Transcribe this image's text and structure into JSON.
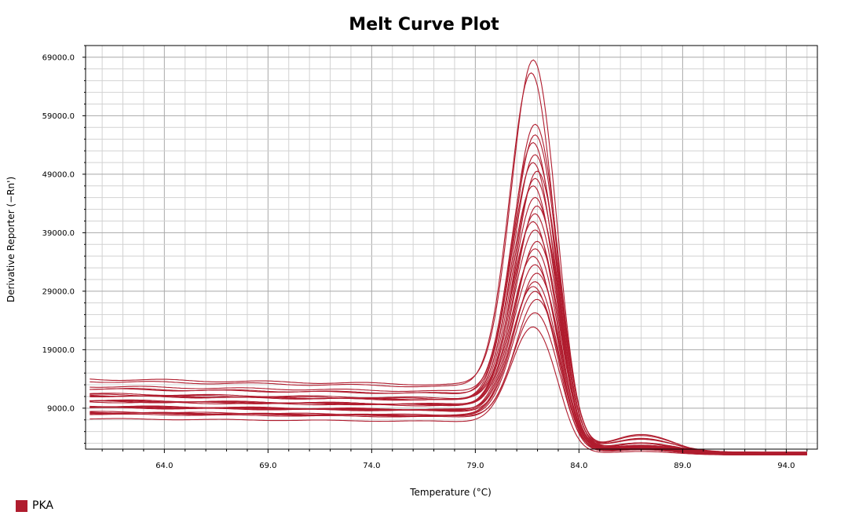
{
  "chart_data": {
    "type": "line",
    "title": "Melt Curve Plot",
    "xlabel": "Temperature (°C)",
    "ylabel": "Derivative Reporter (−Rn')",
    "xlim": [
      60.2,
      95.5
    ],
    "ylim": [
      2000,
      71000
    ],
    "x_ticks": [
      64.0,
      69.0,
      74.0,
      79.0,
      84.0,
      89.0,
      94.0
    ],
    "x_tick_labels": [
      "64.0",
      "69.0",
      "74.0",
      "79.0",
      "84.0",
      "89.0",
      "94.0"
    ],
    "y_ticks": [
      9000,
      19000,
      29000,
      39000,
      49000,
      59000,
      69000
    ],
    "y_tick_labels": [
      "9000.0",
      "19000.0",
      "29000.0",
      "39000.0",
      "49000.0",
      "59000.0",
      "69000.0"
    ],
    "grid": true,
    "legend_position": "bottom-left",
    "series_color": "#b01c2e",
    "series": [
      {
        "name": "PKA",
        "baseline": 13000,
        "peak_x": 81.8,
        "peak": 69000,
        "shoulder": 3500
      },
      {
        "name": "PKA",
        "baseline": 12500,
        "peak_x": 81.7,
        "peak": 66500,
        "shoulder": 3200
      },
      {
        "name": "PKA",
        "baseline": 11500,
        "peak_x": 81.9,
        "peak": 57500,
        "shoulder": 2600
      },
      {
        "name": "PKA",
        "baseline": 11000,
        "peak_x": 81.9,
        "peak": 55500,
        "shoulder": 2400
      },
      {
        "name": "PKA",
        "baseline": 10800,
        "peak_x": 81.8,
        "peak": 54000,
        "shoulder": 2200
      },
      {
        "name": "PKA",
        "baseline": 10500,
        "peak_x": 81.9,
        "peak": 52500,
        "shoulder": 2000
      },
      {
        "name": "PKA",
        "baseline": 10200,
        "peak_x": 81.8,
        "peak": 51000,
        "shoulder": 1900
      },
      {
        "name": "PKA",
        "baseline": 10000,
        "peak_x": 82.0,
        "peak": 49500,
        "shoulder": 1800
      },
      {
        "name": "PKA",
        "baseline": 9800,
        "peak_x": 81.9,
        "peak": 48000,
        "shoulder": 1700
      },
      {
        "name": "PKA",
        "baseline": 9600,
        "peak_x": 81.8,
        "peak": 46500,
        "shoulder": 1600
      },
      {
        "name": "PKA",
        "baseline": 9400,
        "peak_x": 81.9,
        "peak": 45000,
        "shoulder": 1500
      },
      {
        "name": "PKA",
        "baseline": 9200,
        "peak_x": 82.0,
        "peak": 43500,
        "shoulder": 1400
      },
      {
        "name": "PKA",
        "baseline": 9000,
        "peak_x": 81.9,
        "peak": 42000,
        "shoulder": 1400
      },
      {
        "name": "PKA",
        "baseline": 8800,
        "peak_x": 81.8,
        "peak": 40500,
        "shoulder": 1300
      },
      {
        "name": "PKA",
        "baseline": 8600,
        "peak_x": 81.9,
        "peak": 39000,
        "shoulder": 1200
      },
      {
        "name": "PKA",
        "baseline": 8400,
        "peak_x": 82.0,
        "peak": 37500,
        "shoulder": 1200
      },
      {
        "name": "PKA",
        "baseline": 8200,
        "peak_x": 81.9,
        "peak": 36000,
        "shoulder": 1100
      },
      {
        "name": "PKA",
        "baseline": 8000,
        "peak_x": 81.8,
        "peak": 34500,
        "shoulder": 1000
      },
      {
        "name": "PKA",
        "baseline": 7800,
        "peak_x": 81.9,
        "peak": 33000,
        "shoulder": 1000
      },
      {
        "name": "PKA",
        "baseline": 7600,
        "peak_x": 82.0,
        "peak": 31500,
        "shoulder": 900
      },
      {
        "name": "PKA",
        "baseline": 7400,
        "peak_x": 81.9,
        "peak": 30500,
        "shoulder": 900
      },
      {
        "name": "PKA",
        "baseline": 7200,
        "peak_x": 81.8,
        "peak": 29500,
        "shoulder": 800
      },
      {
        "name": "PKA",
        "baseline": 7000,
        "peak_x": 81.9,
        "peak": 28500,
        "shoulder": 800
      },
      {
        "name": "PKA",
        "baseline": 6800,
        "peak_x": 82.0,
        "peak": 27000,
        "shoulder": 700
      },
      {
        "name": "PKA",
        "baseline": 6500,
        "peak_x": 81.9,
        "peak": 24500,
        "shoulder": 700
      },
      {
        "name": "PKA",
        "baseline": 6200,
        "peak_x": 81.8,
        "peak": 22500,
        "shoulder": 600
      }
    ]
  },
  "legend": {
    "label": "PKA",
    "color": "#b01c2e"
  }
}
